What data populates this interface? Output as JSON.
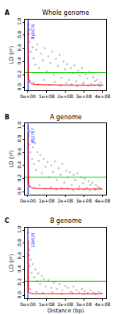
{
  "chart_data": [
    {
      "type": "scatter",
      "title": "Whole genome",
      "panel_label": "A",
      "ylabel": "LD (r²)",
      "xlim": [
        -16000000,
        420000000
      ],
      "xticks": [
        {
          "value": 0,
          "label": "0e+00"
        },
        {
          "value": 100000000,
          "label": "1e+08"
        },
        {
          "value": 200000000,
          "label": "2e+08"
        },
        {
          "value": 300000000,
          "label": "3e+08"
        },
        {
          "value": 400000000,
          "label": "4e+08"
        }
      ],
      "ylim": [
        -0.04,
        1.04
      ],
      "yticks": [
        {
          "value": 0,
          "label": "0.0"
        },
        0.2,
        0.4,
        0.6,
        0.8,
        {
          "value": 1,
          "label": "1.0"
        }
      ],
      "series": [
        {
          "type": "scatter",
          "color": "#bebebe",
          "marker": "circle",
          "x": [
            1000000,
            2000000,
            4000000,
            6000000,
            8000000,
            12000000,
            15000000,
            20000000,
            25000000,
            30000000,
            35000000,
            40000000,
            45000000,
            50000000,
            60000000,
            70000000,
            80000000,
            90000000,
            100000000,
            110000000,
            120000000,
            130000000,
            140000000,
            150000000,
            160000000,
            170000000,
            180000000,
            190000000,
            200000000,
            210000000,
            220000000,
            230000000,
            240000000,
            250000000,
            260000000,
            270000000,
            280000000,
            290000000,
            300000000,
            310000000,
            320000000,
            330000000,
            340000000,
            350000000,
            360000000,
            370000000,
            380000000,
            390000000,
            400000000,
            10000000,
            30000000,
            55000000,
            85000000,
            115000000,
            145000000,
            175000000,
            205000000,
            235000000,
            265000000,
            295000000,
            325000000,
            355000000,
            385000000
          ],
          "values": [
            0.98,
            0.95,
            0.82,
            0.9,
            0.7,
            0.88,
            0.55,
            0.76,
            0.62,
            0.45,
            0.8,
            0.35,
            0.58,
            0.66,
            0.3,
            0.52,
            0.42,
            0.6,
            0.25,
            0.48,
            0.38,
            0.55,
            0.2,
            0.44,
            0.33,
            0.5,
            0.15,
            0.4,
            0.28,
            0.36,
            0.12,
            0.3,
            0.22,
            0.34,
            0.1,
            0.26,
            0.18,
            0.3,
            0.08,
            0.2,
            0.14,
            0.24,
            0.06,
            0.16,
            0.1,
            0.12,
            0.05,
            0.08,
            0.04,
            0.1,
            0.08,
            0.05,
            0.12,
            0.04,
            0.09,
            0.03,
            0.07,
            0.05,
            0.02,
            0.06,
            0.03,
            0.04,
            0.02
          ]
        },
        {
          "type": "line",
          "color": "#00cc00",
          "x": [
            -16000000,
            420000000
          ],
          "values": [
            0.23,
            0.23
          ]
        },
        {
          "type": "line",
          "color": "#0000ff",
          "x": [
            840676,
            840676
          ],
          "values": [
            -0.04,
            1.04
          ]
        },
        {
          "type": "line",
          "color": "#ff0000",
          "x": [
            0,
            300000,
            840676,
            2000000,
            5000000,
            10000000,
            20000000,
            40000000,
            80000000,
            150000000,
            250000000,
            400000000
          ],
          "values": [
            0.9,
            0.4,
            0.23,
            0.16,
            0.11,
            0.08,
            0.06,
            0.05,
            0.045,
            0.04,
            0.04,
            0.04
          ]
        }
      ],
      "annotations": [
        {
          "text": "840676",
          "x": 840676,
          "y": 0.85,
          "color": "#0000ff"
        }
      ]
    },
    {
      "type": "scatter",
      "title": "A genome",
      "panel_label": "B",
      "ylabel": "LD (r²)",
      "xlim": [
        -16000000,
        420000000
      ],
      "xticks": [
        {
          "value": 0,
          "label": "0e+00"
        },
        {
          "value": 100000000,
          "label": "1e+08"
        },
        {
          "value": 200000000,
          "label": "2e+08"
        },
        {
          "value": 300000000,
          "label": "3e+08"
        },
        {
          "value": 400000000,
          "label": "4e+08"
        }
      ],
      "ylim": [
        -0.04,
        1.04
      ],
      "yticks": [
        {
          "value": 0,
          "label": "0.0"
        },
        0.2,
        0.4,
        0.6,
        0.8,
        {
          "value": 1,
          "label": "1.0"
        }
      ],
      "series": [
        {
          "type": "scatter",
          "color": "#bebebe",
          "marker": "circle",
          "x": [
            1000000,
            3000000,
            5000000,
            7000000,
            10000000,
            14000000,
            18000000,
            22000000,
            27000000,
            32000000,
            38000000,
            44000000,
            50000000,
            58000000,
            66000000,
            75000000,
            85000000,
            95000000,
            105000000,
            115000000,
            125000000,
            135000000,
            145000000,
            155000000,
            165000000,
            175000000,
            185000000,
            195000000,
            205000000,
            215000000,
            225000000,
            235000000,
            245000000,
            255000000,
            265000000,
            275000000,
            285000000,
            295000000,
            305000000,
            315000000,
            325000000,
            335000000,
            345000000,
            355000000,
            365000000,
            375000000,
            385000000,
            395000000,
            12000000,
            36000000,
            62000000,
            92000000,
            122000000,
            152000000,
            182000000,
            212000000,
            242000000,
            272000000,
            302000000,
            332000000,
            362000000
          ],
          "values": [
            0.97,
            0.9,
            0.85,
            0.72,
            0.92,
            0.6,
            0.78,
            0.5,
            0.68,
            0.42,
            0.74,
            0.33,
            0.6,
            0.47,
            0.56,
            0.28,
            0.5,
            0.38,
            0.45,
            0.22,
            0.4,
            0.3,
            0.46,
            0.18,
            0.36,
            0.26,
            0.42,
            0.14,
            0.32,
            0.22,
            0.3,
            0.1,
            0.26,
            0.18,
            0.28,
            0.08,
            0.22,
            0.13,
            0.2,
            0.06,
            0.16,
            0.1,
            0.14,
            0.05,
            0.1,
            0.07,
            0.06,
            0.04,
            0.08,
            0.06,
            0.1,
            0.04,
            0.07,
            0.03,
            0.06,
            0.05,
            0.02,
            0.04,
            0.03,
            0.02,
            0.03
          ]
        },
        {
          "type": "line",
          "color": "#00cc00",
          "x": [
            -16000000,
            420000000
          ],
          "values": [
            0.22,
            0.22
          ]
        },
        {
          "type": "line",
          "color": "#0000ff",
          "x": [
            862757,
            862757
          ],
          "values": [
            -0.04,
            1.04
          ]
        },
        {
          "type": "line",
          "color": "#ff0000",
          "x": [
            0,
            300000,
            862757,
            2000000,
            5000000,
            10000000,
            20000000,
            40000000,
            80000000,
            150000000,
            250000000,
            400000000
          ],
          "values": [
            0.9,
            0.38,
            0.22,
            0.15,
            0.1,
            0.075,
            0.06,
            0.05,
            0.045,
            0.04,
            0.04,
            0.04
          ]
        }
      ],
      "annotations": [
        {
          "text": "862757",
          "x": 862757,
          "y": 0.85,
          "color": "#0000ff"
        }
      ]
    },
    {
      "type": "scatter",
      "title": "B genome",
      "panel_label": "C",
      "ylabel": "LD (r²)",
      "xlabel": "Distance (bp)",
      "xlim": [
        -16000000,
        420000000
      ],
      "xticks": [
        {
          "value": 0,
          "label": "0e+00"
        },
        {
          "value": 100000000,
          "label": "1e+08"
        },
        {
          "value": 200000000,
          "label": "2e+08"
        },
        {
          "value": 300000000,
          "label": "3e+08"
        },
        {
          "value": 400000000,
          "label": "4e+08"
        }
      ],
      "ylim": [
        -0.04,
        1.04
      ],
      "yticks": [
        {
          "value": 0,
          "label": "0.0"
        },
        0.2,
        0.4,
        0.6,
        0.8,
        {
          "value": 1,
          "label": "1.0"
        }
      ],
      "series": [
        {
          "type": "scatter",
          "color": "#bebebe",
          "marker": "circle",
          "x": [
            500000,
            2000000,
            4000000,
            7000000,
            10000000,
            15000000,
            20000000,
            26000000,
            33000000,
            40000000,
            48000000,
            56000000,
            65000000,
            75000000,
            85000000,
            95000000,
            110000000,
            125000000,
            140000000,
            155000000,
            170000000,
            185000000,
            200000000,
            215000000,
            230000000,
            245000000,
            260000000,
            275000000,
            290000000,
            305000000,
            320000000,
            335000000,
            350000000,
            365000000,
            380000000,
            395000000,
            12000000,
            45000000,
            80000000,
            130000000,
            180000000,
            240000000,
            300000000,
            360000000
          ],
          "values": [
            0.96,
            0.8,
            0.62,
            0.7,
            0.45,
            0.55,
            0.35,
            0.48,
            0.28,
            0.4,
            0.22,
            0.34,
            0.18,
            0.3,
            0.25,
            0.14,
            0.24,
            0.12,
            0.2,
            0.1,
            0.18,
            0.08,
            0.15,
            0.12,
            0.06,
            0.14,
            0.09,
            0.05,
            0.1,
            0.07,
            0.04,
            0.08,
            0.05,
            0.03,
            0.06,
            0.04,
            0.1,
            0.06,
            0.04,
            0.05,
            0.03,
            0.04,
            0.02,
            0.02
          ]
        },
        {
          "type": "line",
          "color": "#00cc00",
          "x": [
            -16000000,
            420000000
          ],
          "values": [
            0.22,
            0.22
          ]
        },
        {
          "type": "line",
          "color": "#0000ff",
          "x": [
            129525,
            129525
          ],
          "values": [
            -0.04,
            1.04
          ]
        },
        {
          "type": "line",
          "color": "#ff0000",
          "x": [
            0,
            50000,
            129525,
            500000,
            2000000,
            5000000,
            10000000,
            20000000,
            40000000,
            100000000,
            250000000,
            400000000
          ],
          "values": [
            0.85,
            0.4,
            0.22,
            0.12,
            0.07,
            0.05,
            0.04,
            0.035,
            0.03,
            0.03,
            0.03,
            0.03
          ]
        }
      ],
      "annotations": [
        {
          "text": "129525",
          "x": 129525,
          "y": 0.85,
          "color": "#0000ff"
        }
      ]
    }
  ]
}
